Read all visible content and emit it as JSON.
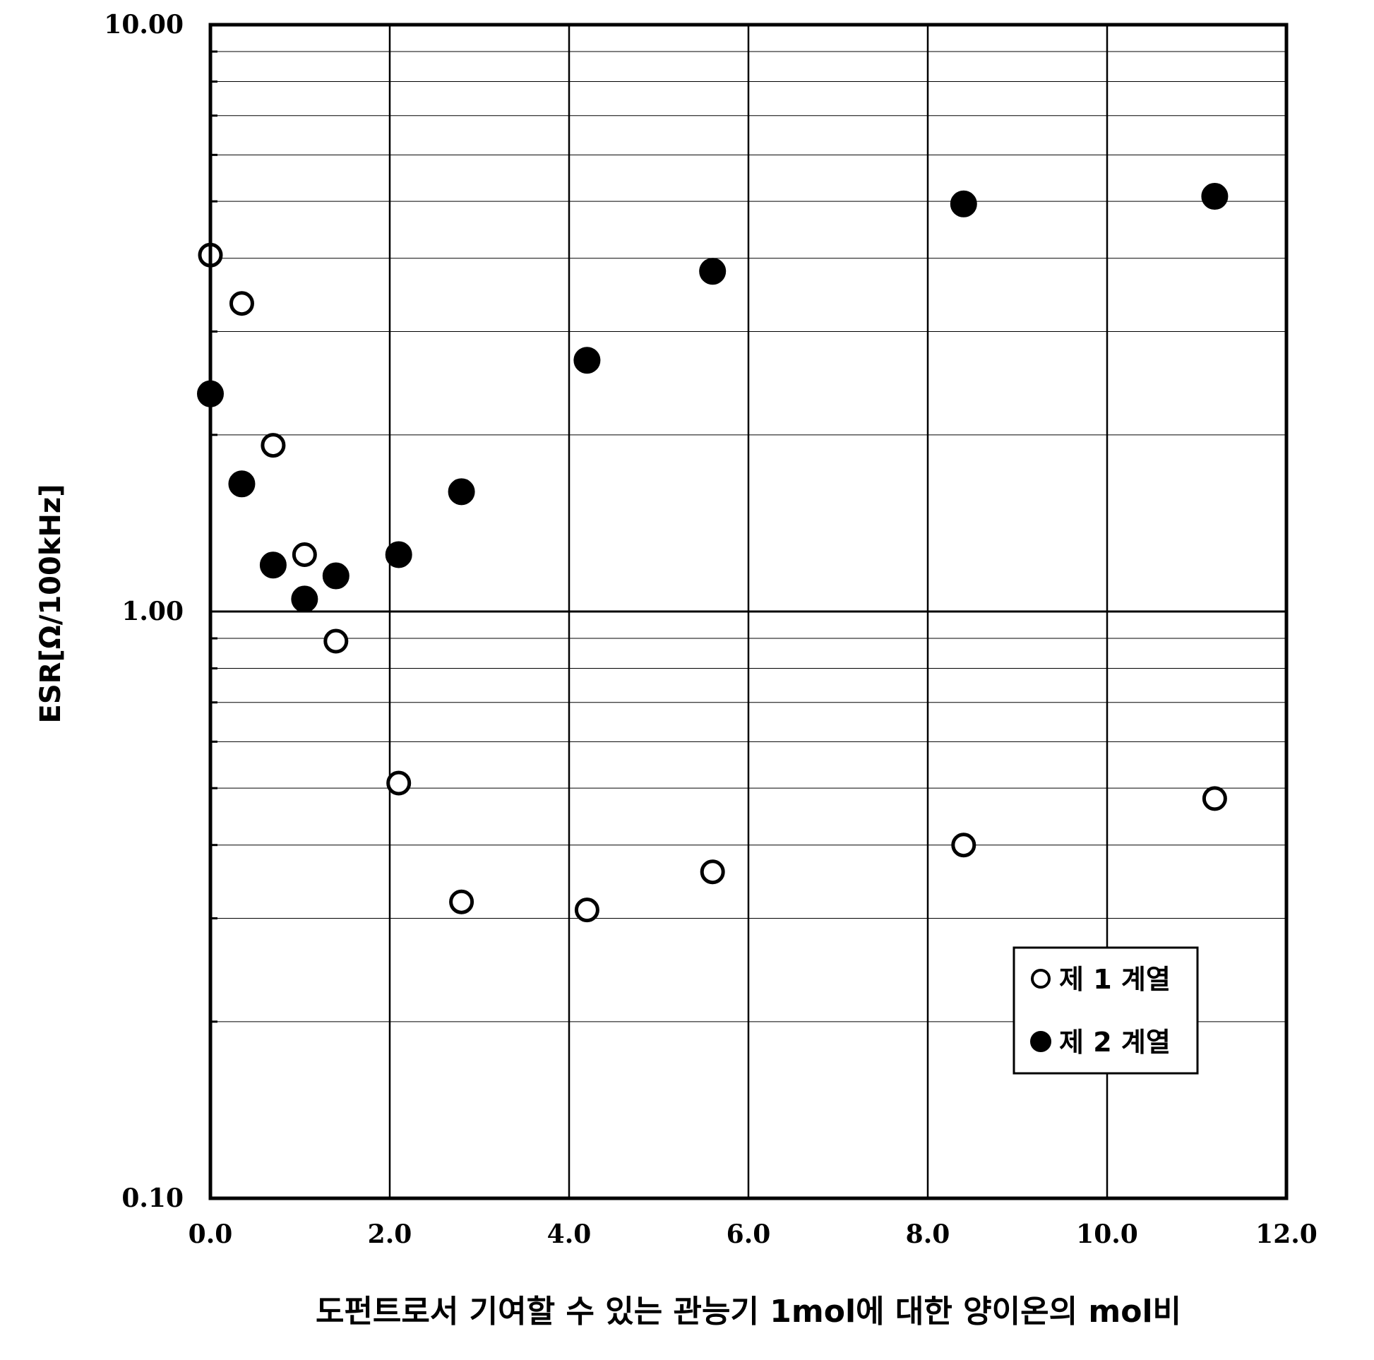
{
  "chart_data": {
    "type": "scatter",
    "title": "",
    "xlabel": "도펀트로서 기여할 수 있는 관능기 1mol에 대한 양이온의 mol비",
    "ylabel": "ESR[Ω/100kHz]",
    "xlim": [
      0,
      12
    ],
    "ylim": [
      0.1,
      10
    ],
    "yscale": "log",
    "x_ticks": [
      "0.0",
      "2.0",
      "4.0",
      "6.0",
      "8.0",
      "10.0",
      "12.0"
    ],
    "y_ticks": [
      "0.10",
      "1.00",
      "10.00"
    ],
    "grid": true,
    "legend_position": "bottom-right",
    "series": [
      {
        "name": "제 1 계열",
        "marker": "open-circle",
        "color": "#000000",
        "x": [
          0.0,
          0.35,
          0.7,
          1.05,
          1.4,
          2.1,
          2.8,
          4.2,
          5.6,
          8.4,
          11.2
        ],
        "y": [
          4.05,
          3.35,
          1.92,
          1.25,
          0.89,
          0.51,
          0.32,
          0.31,
          0.36,
          0.4,
          0.48
        ]
      },
      {
        "name": "제 2 계열",
        "marker": "filled-circle",
        "color": "#000000",
        "x": [
          0.0,
          0.35,
          0.7,
          1.05,
          1.4,
          2.1,
          2.8,
          4.2,
          5.6,
          8.4,
          11.2
        ],
        "y": [
          2.35,
          1.65,
          1.2,
          1.05,
          1.15,
          1.25,
          1.6,
          2.68,
          3.8,
          4.95,
          5.1
        ]
      }
    ]
  }
}
